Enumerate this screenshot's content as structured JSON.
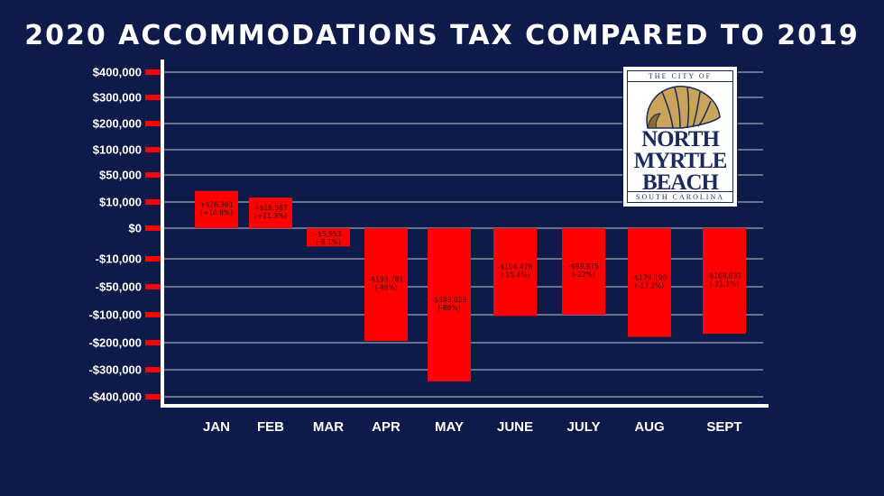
{
  "chart_data": {
    "type": "bar",
    "title": "2020 ACCOMMODATIONS TAX COMPARED TO 2019",
    "categories": [
      "JAN",
      "FEB",
      "MAR",
      "APR",
      "MAY",
      "JUNE",
      "JULY",
      "AUG",
      "SEPT"
    ],
    "y_ticks": [
      "$400,000",
      "$300,000",
      "$200,000",
      "$100,000",
      "$50,000",
      "$10,000",
      "$0",
      "-$10,000",
      "-$50,000",
      "-$100,000",
      "-$200,000",
      "-$300,000",
      "-$400,000"
    ],
    "y_tick_values": [
      400000,
      300000,
      200000,
      100000,
      50000,
      10000,
      0,
      -10000,
      -50000,
      -100000,
      -200000,
      -300000,
      -400000
    ],
    "y_scale": "non-linear (tick labels evenly spaced)",
    "values": [
      26361,
      16567,
      -5953,
      -193781,
      -343029,
      -104476,
      -99975,
      -179190,
      -168031
    ],
    "data_labels": [
      [
        "+$26,361",
        "(+14.8%)"
      ],
      [
        "+$16,567",
        "(+11.3%)"
      ],
      [
        "-$5,953",
        "(-8.1%)"
      ],
      [
        "-$193,781",
        "(-49%)"
      ],
      [
        "-$343,029",
        "(-88%)"
      ],
      [
        "-$104,476",
        "(-15.4%)"
      ],
      [
        "-$99,975",
        "(-22%)"
      ],
      [
        "-$179,190",
        "(-17.2%)"
      ],
      [
        "-$168,031",
        "(-21.1%)"
      ]
    ],
    "grid": true,
    "colors": {
      "background": "#0d1a4a",
      "bar": "#ff0000",
      "grid": "#ffffff",
      "tick_marker": "#ff0000",
      "text": "#ffffff"
    }
  },
  "logo": {
    "top_text": "THE CITY OF",
    "name_lines": [
      "NORTH",
      "MYRTLE",
      "BEACH"
    ],
    "bottom_text": "SOUTH CAROLINA"
  }
}
